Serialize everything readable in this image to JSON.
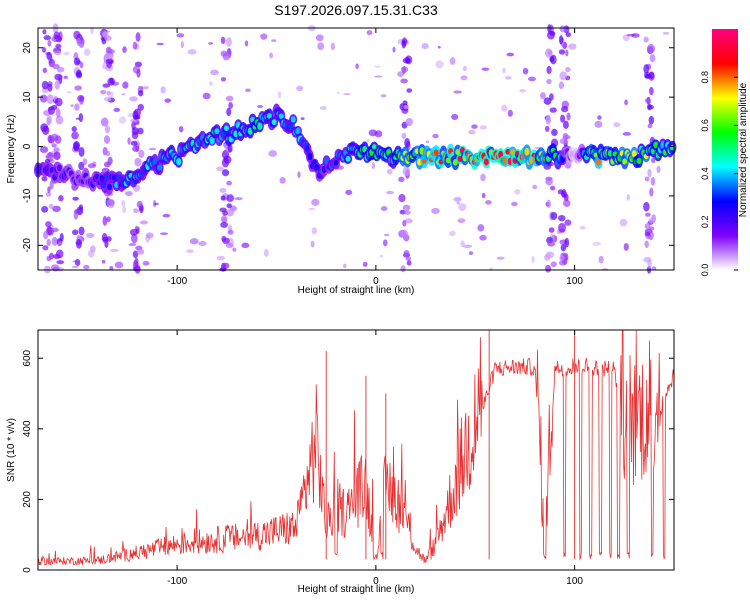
{
  "page_title": "S197.2026.097.15.31.C33",
  "chart_data": [
    {
      "type": "heatmap",
      "xlabel": "Height of straight line (km)",
      "ylabel": "Frequency (Hz)",
      "xlim": [
        -170,
        150
      ],
      "ylim": [
        -25,
        24
      ],
      "xticks": [
        -100,
        0,
        100
      ],
      "yticks": [
        -20,
        -10,
        0,
        10,
        20
      ],
      "colorbar": {
        "label": "Normalized spectral amplitude",
        "range": [
          0.0,
          1.0
        ],
        "ticks": [
          0.0,
          0.2,
          0.4,
          0.6,
          0.8
        ],
        "stops": [
          "#ffffff",
          "#7f00ff",
          "#0000ff",
          "#00ffff",
          "#00ff00",
          "#ffff00",
          "#ff0000",
          "#ff0080"
        ]
      },
      "ridge": {
        "description_x": [
          -165,
          -150,
          -140,
          -125,
          -115,
          -100,
          -90,
          -80,
          -70,
          -60,
          -50,
          -40,
          -30,
          -20,
          -10,
          0,
          10,
          20,
          40,
          60,
          80,
          90,
          100,
          110,
          120,
          130,
          140,
          150
        ],
        "frequency_hz": [
          -5,
          -6,
          -7,
          -7,
          -4,
          -2,
          0,
          2,
          3,
          5,
          6,
          4,
          -5,
          -3,
          -1,
          -1,
          -2,
          -2,
          -2,
          -2,
          -2,
          -2,
          -2,
          -2,
          -2,
          -2,
          -1,
          0
        ],
        "amplitude": [
          0.3,
          0.2,
          0.25,
          0.45,
          0.4,
          0.45,
          0.5,
          0.45,
          0.5,
          0.55,
          0.4,
          0.45,
          0.3,
          0.35,
          0.5,
          0.6,
          0.55,
          0.8,
          0.9,
          0.9,
          0.9,
          0.6,
          0.0,
          0.75,
          0.7,
          0.7,
          0.6,
          0.5
        ]
      },
      "noise_bands_x": [
        -165,
        -160,
        -150,
        -135,
        -120,
        -75,
        15,
        88,
        95,
        138
      ]
    },
    {
      "type": "line",
      "xlabel": "Height of straight line (km)",
      "ylabel": "SNR (10 * v/v)",
      "xlim": [
        -170,
        150
      ],
      "ylim": [
        0,
        680
      ],
      "xticks": [
        -100,
        0,
        100
      ],
      "yticks": [
        0,
        200,
        400,
        600
      ],
      "color": "#e83030",
      "series_envelope": {
        "x": [
          -170,
          -140,
          -120,
          -100,
          -80,
          -60,
          -40,
          -30,
          -25,
          -20,
          -15,
          -10,
          -5,
          0,
          5,
          10,
          15,
          20,
          25,
          30,
          40,
          50,
          55,
          60,
          70,
          80,
          85,
          90,
          100,
          110,
          120,
          125,
          130,
          140,
          150
        ],
        "y": [
          20,
          22,
          40,
          60,
          70,
          80,
          100,
          300,
          100,
          150,
          130,
          170,
          200,
          30,
          200,
          170,
          120,
          50,
          20,
          60,
          200,
          350,
          480,
          570,
          575,
          575,
          40,
          570,
          580,
          575,
          570,
          380,
          340,
          400,
          560
        ]
      },
      "dropouts_x": [
        -20,
        -1,
        3,
        85,
        95,
        103,
        108,
        113,
        118,
        122,
        127,
        139,
        145
      ],
      "spikes": [
        {
          "x": -25,
          "y": 620
        },
        {
          "x": -5,
          "y": 550
        },
        {
          "x": 5,
          "y": 500
        },
        {
          "x": 57,
          "y": 680
        },
        {
          "x": 100,
          "y": 680
        }
      ]
    }
  ]
}
